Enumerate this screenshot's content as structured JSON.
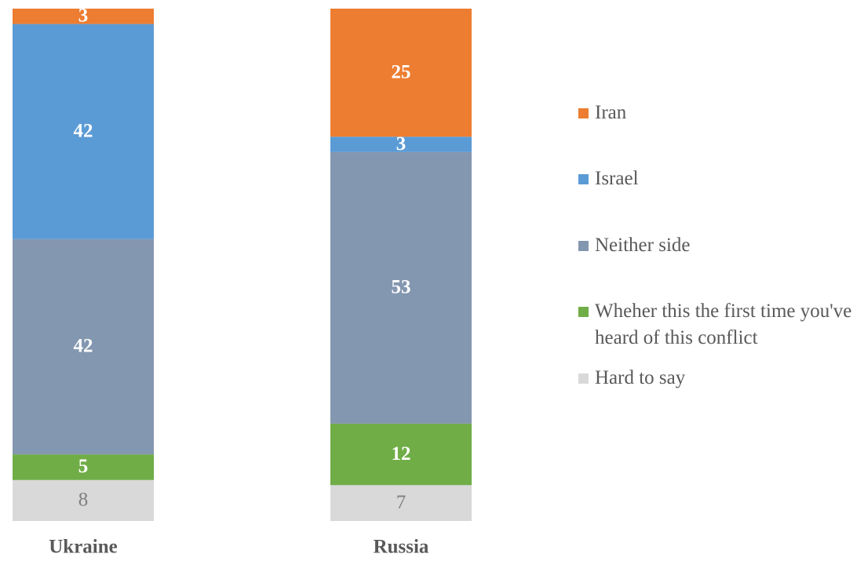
{
  "chart_data": {
    "type": "stacked_bar",
    "categories": [
      "Ukraine",
      "Russia"
    ],
    "series": [
      {
        "name": "Hard to say",
        "color": "#d9d9d9",
        "values": [
          8,
          7
        ]
      },
      {
        "name": "Wheher this the first time you've heard of this conflict",
        "color": "#70ad47",
        "values": [
          5,
          12
        ]
      },
      {
        "name": "Neither side",
        "color": "#8497b0",
        "values": [
          42,
          53
        ]
      },
      {
        "name": "Israel",
        "color": "#5b9bd5",
        "values": [
          42,
          3
        ]
      },
      {
        "name": "Iran",
        "color": "#ed7d31",
        "values": [
          3,
          25
        ]
      }
    ]
  }
}
